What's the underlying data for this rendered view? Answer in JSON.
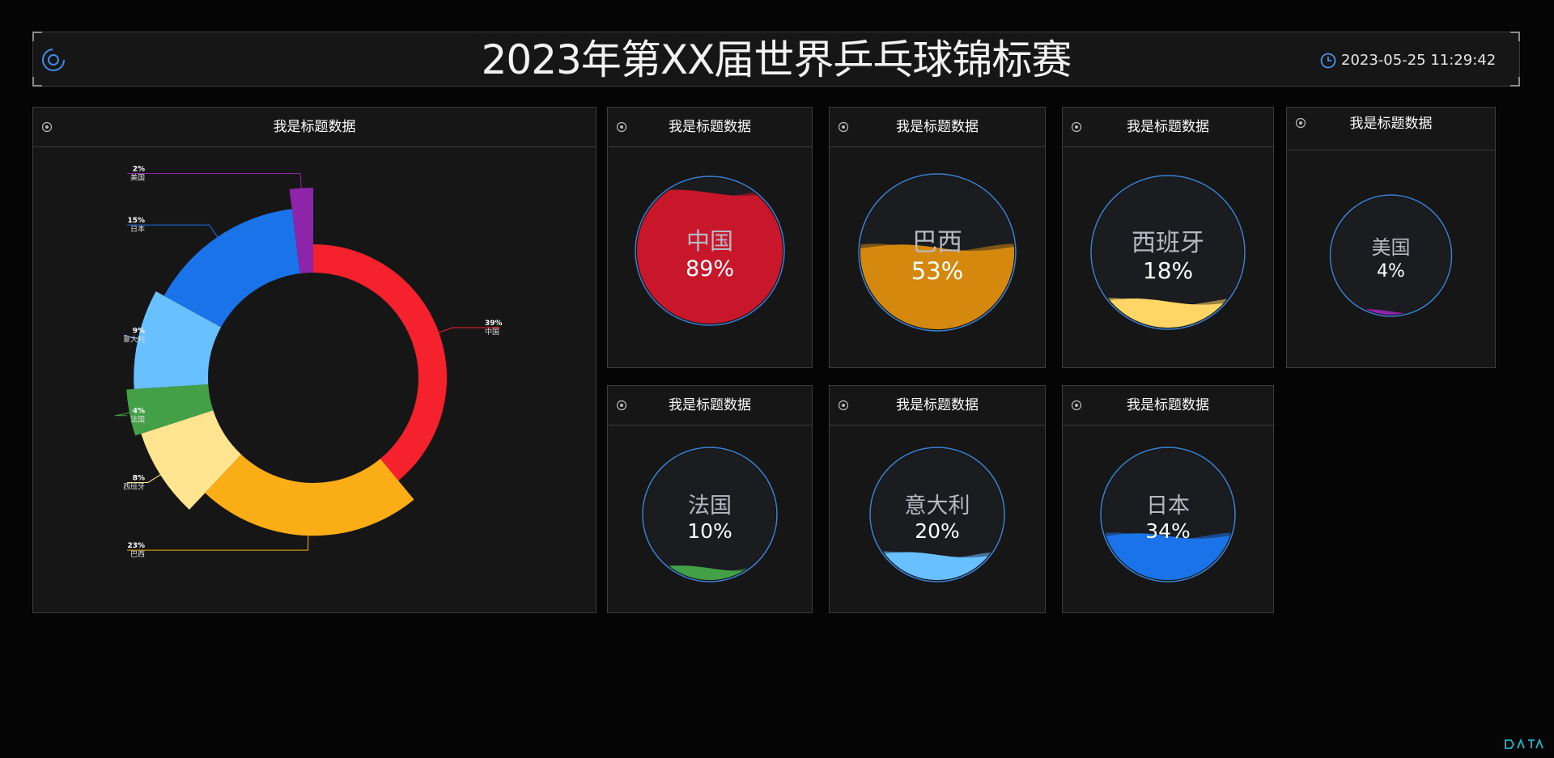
{
  "header": {
    "title": "2023年第XX届世界乒乓球锦标赛",
    "datetime": "2023-05-25 11:29:42"
  },
  "panels": {
    "main": {
      "title": "我是标题数据"
    },
    "china": {
      "title": "我是标题数据"
    },
    "brazil": {
      "title": "我是标题数据"
    },
    "spain": {
      "title": "我是标题数据"
    },
    "usa": {
      "title": "我是标题数据"
    },
    "france": {
      "title": "我是标题数据"
    },
    "italy": {
      "title": "我是标题数据"
    },
    "japan": {
      "title": "我是标题数据"
    }
  },
  "icons": {
    "header_logo": "ring-logo-icon",
    "clock": "clock-icon",
    "panel": "target-icon",
    "brand": "datav-logo-icon"
  },
  "colors": {
    "china": "#f5222d",
    "brazil": "#faad14",
    "spain": "#ffe58f",
    "france": "#43a047",
    "italy": "#69c0ff",
    "japan": "#1a73e8",
    "usa": "#8e24aa",
    "accent": "#3d8de8"
  },
  "chart_data": [
    {
      "type": "pie",
      "categories": [
        "中国",
        "巴西",
        "西班牙",
        "法国",
        "意大利",
        "日本",
        "美国"
      ],
      "values": [
        39,
        23,
        8,
        4,
        9,
        15,
        2
      ],
      "labels": [
        "39%",
        "23%",
        "8%",
        "4%",
        "9%",
        "15%",
        "2%"
      ],
      "colors": [
        "#f5222d",
        "#faad14",
        "#ffe58f",
        "#43a047",
        "#69c0ff",
        "#1a73e8",
        "#8e24aa"
      ]
    },
    {
      "type": "liquid",
      "name": "中国",
      "value": 89,
      "label": "89%",
      "color": "#c8162a"
    },
    {
      "type": "liquid",
      "name": "巴西",
      "value": 53,
      "label": "53%",
      "color": "#d4880d"
    },
    {
      "type": "liquid",
      "name": "西班牙",
      "value": 18,
      "label": "18%",
      "color": "#ffd666"
    },
    {
      "type": "liquid",
      "name": "美国",
      "value": 4,
      "label": "4%",
      "color": "#8e24aa"
    },
    {
      "type": "liquid",
      "name": "法国",
      "value": 10,
      "label": "10%",
      "color": "#43a047"
    },
    {
      "type": "liquid",
      "name": "意大利",
      "value": 20,
      "label": "20%",
      "color": "#69c0ff"
    },
    {
      "type": "liquid",
      "name": "日本",
      "value": 34,
      "label": "34%",
      "color": "#1a73e8"
    }
  ]
}
